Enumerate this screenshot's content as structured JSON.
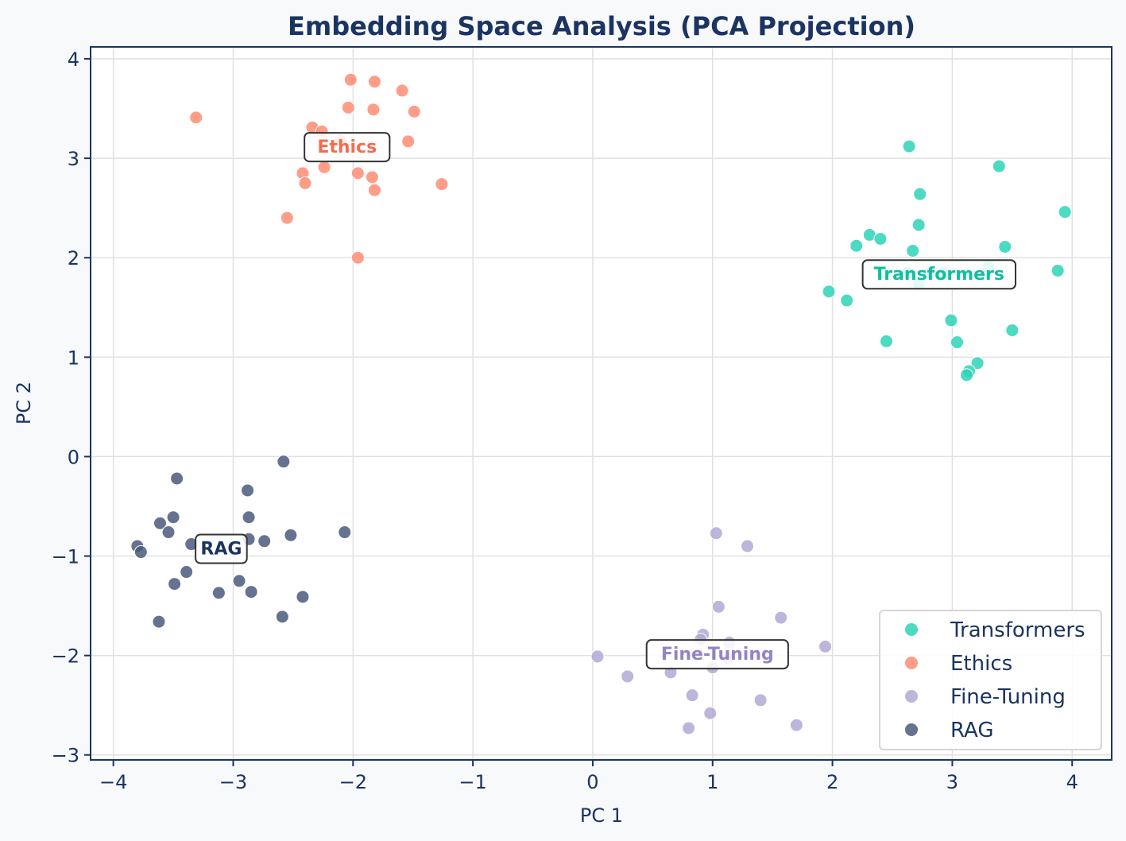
{
  "chart_data": {
    "type": "scatter",
    "title": "Embedding Space Analysis (PCA Projection)",
    "xlabel": "PC 1",
    "ylabel": "PC 2",
    "xlim": [
      -4.19,
      4.33
    ],
    "ylim": [
      -3.05,
      4.12
    ],
    "xticks": [
      -4,
      -3,
      -2,
      -1,
      0,
      1,
      2,
      3,
      4
    ],
    "yticks": [
      -3,
      -2,
      -1,
      0,
      1,
      2,
      3,
      4
    ],
    "xtick_labels": [
      "−4",
      "−3",
      "−2",
      "−1",
      "0",
      "1",
      "2",
      "3",
      "4"
    ],
    "ytick_labels": [
      "−3",
      "−2",
      "−1",
      "0",
      "1",
      "2",
      "3",
      "4"
    ],
    "grid": true,
    "legend_position": "bottom-right",
    "series": [
      {
        "name": "Transformers",
        "color": "#2ed3b7",
        "label_color": "#0fbf9f",
        "label_position": [
          2.89,
          1.84
        ],
        "points": [
          [
            2.64,
            3.12
          ],
          [
            3.39,
            2.92
          ],
          [
            2.73,
            2.64
          ],
          [
            3.94,
            2.46
          ],
          [
            2.72,
            2.33
          ],
          [
            2.31,
            2.23
          ],
          [
            2.4,
            2.19
          ],
          [
            2.2,
            2.12
          ],
          [
            2.67,
            2.07
          ],
          [
            3.44,
            2.11
          ],
          [
            3.88,
            1.87
          ],
          [
            1.97,
            1.66
          ],
          [
            2.12,
            1.57
          ],
          [
            2.45,
            1.16
          ],
          [
            2.99,
            1.37
          ],
          [
            3.04,
            1.15
          ],
          [
            3.5,
            1.27
          ],
          [
            3.21,
            0.94
          ],
          [
            3.14,
            0.86
          ],
          [
            3.12,
            0.82
          ],
          [
            2.63,
            1.85
          ],
          [
            2.8,
            1.84
          ],
          [
            2.93,
            1.85
          ],
          [
            3.3,
            1.91
          ],
          [
            2.72,
            1.74
          ]
        ]
      },
      {
        "name": "Ethics",
        "color": "#ff8c73",
        "label_color": "#f26d50",
        "label_position": [
          -2.05,
          3.12
        ],
        "points": [
          [
            -3.31,
            3.41
          ],
          [
            -2.34,
            3.31
          ],
          [
            -2.26,
            3.27
          ],
          [
            -2.11,
            3.18
          ],
          [
            -2.02,
            3.79
          ],
          [
            -1.82,
            3.77
          ],
          [
            -1.59,
            3.68
          ],
          [
            -2.04,
            3.51
          ],
          [
            -1.83,
            3.49
          ],
          [
            -1.49,
            3.47
          ],
          [
            -1.54,
            3.17
          ],
          [
            -2.42,
            2.85
          ],
          [
            -2.4,
            2.75
          ],
          [
            -2.24,
            2.91
          ],
          [
            -1.96,
            2.85
          ],
          [
            -1.84,
            2.81
          ],
          [
            -1.82,
            2.68
          ],
          [
            -1.26,
            2.74
          ],
          [
            -2.55,
            2.4
          ],
          [
            -1.96,
            2.0
          ]
        ]
      },
      {
        "name": "Fine-Tuning",
        "color": "#b3a8d3",
        "label_color": "#9484c2",
        "label_position": [
          1.04,
          -1.98
        ],
        "points": [
          [
            1.03,
            -0.77
          ],
          [
            1.29,
            -0.9
          ],
          [
            1.05,
            -1.51
          ],
          [
            1.57,
            -1.62
          ],
          [
            1.94,
            -1.91
          ],
          [
            0.04,
            -2.01
          ],
          [
            0.29,
            -2.21
          ],
          [
            0.65,
            -2.17
          ],
          [
            0.92,
            -1.79
          ],
          [
            0.9,
            -1.84
          ],
          [
            1.14,
            -1.87
          ],
          [
            1.13,
            -2.03
          ],
          [
            1.0,
            -2.12
          ],
          [
            0.83,
            -2.4
          ],
          [
            1.4,
            -2.45
          ],
          [
            0.98,
            -2.58
          ],
          [
            0.8,
            -2.73
          ],
          [
            1.7,
            -2.7
          ]
        ]
      },
      {
        "name": "RAG",
        "color": "#4a5a7c",
        "label_color": "#1b3461",
        "label_position": [
          -3.1,
          -0.92
        ],
        "points": [
          [
            -2.58,
            -0.05
          ],
          [
            -3.47,
            -0.22
          ],
          [
            -2.88,
            -0.34
          ],
          [
            -3.5,
            -0.61
          ],
          [
            -2.87,
            -0.61
          ],
          [
            -3.61,
            -0.67
          ],
          [
            -3.54,
            -0.76
          ],
          [
            -3.35,
            -0.88
          ],
          [
            -2.52,
            -0.79
          ],
          [
            -2.07,
            -0.76
          ],
          [
            -2.74,
            -0.85
          ],
          [
            -2.87,
            -0.83
          ],
          [
            -3.8,
            -0.9
          ],
          [
            -3.77,
            -0.96
          ],
          [
            -3.39,
            -1.16
          ],
          [
            -3.49,
            -1.28
          ],
          [
            -2.95,
            -1.25
          ],
          [
            -3.12,
            -1.37
          ],
          [
            -2.85,
            -1.36
          ],
          [
            -2.42,
            -1.41
          ],
          [
            -3.62,
            -1.66
          ],
          [
            -2.59,
            -1.61
          ]
        ]
      }
    ]
  }
}
